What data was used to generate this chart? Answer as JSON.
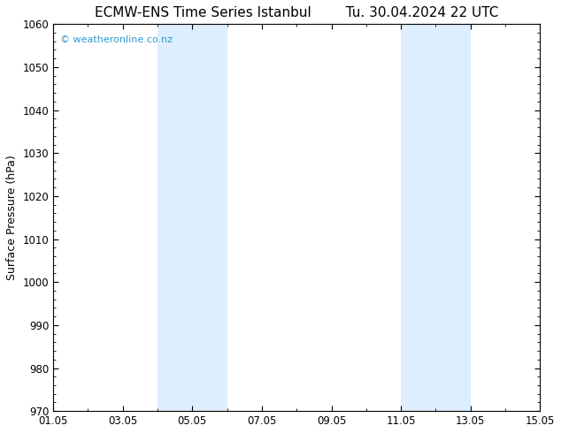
{
  "title_left": "ECMW-ENS Time Series Istanbul",
  "title_right": "Tu. 30.04.2024 22 UTC",
  "ylabel": "Surface Pressure (hPa)",
  "ylim": [
    970,
    1060
  ],
  "yticks": [
    970,
    980,
    990,
    1000,
    1010,
    1020,
    1030,
    1040,
    1050,
    1060
  ],
  "xlim": [
    0,
    14
  ],
  "xtick_labels": [
    "01.05",
    "03.05",
    "05.05",
    "07.05",
    "09.05",
    "11.05",
    "13.05",
    "15.05"
  ],
  "xtick_positions": [
    0,
    2,
    4,
    6,
    8,
    10,
    12,
    14
  ],
  "shaded_regions": [
    {
      "x_start": 3.0,
      "x_end": 5.0,
      "color": "#ddeeff"
    },
    {
      "x_start": 10.0,
      "x_end": 12.0,
      "color": "#ddeeff"
    }
  ],
  "watermark_text": "© weatheronline.co.nz",
  "watermark_color": "#3399cc",
  "background_color": "#ffffff",
  "title_fontsize": 11,
  "label_fontsize": 9,
  "tick_fontsize": 8.5
}
